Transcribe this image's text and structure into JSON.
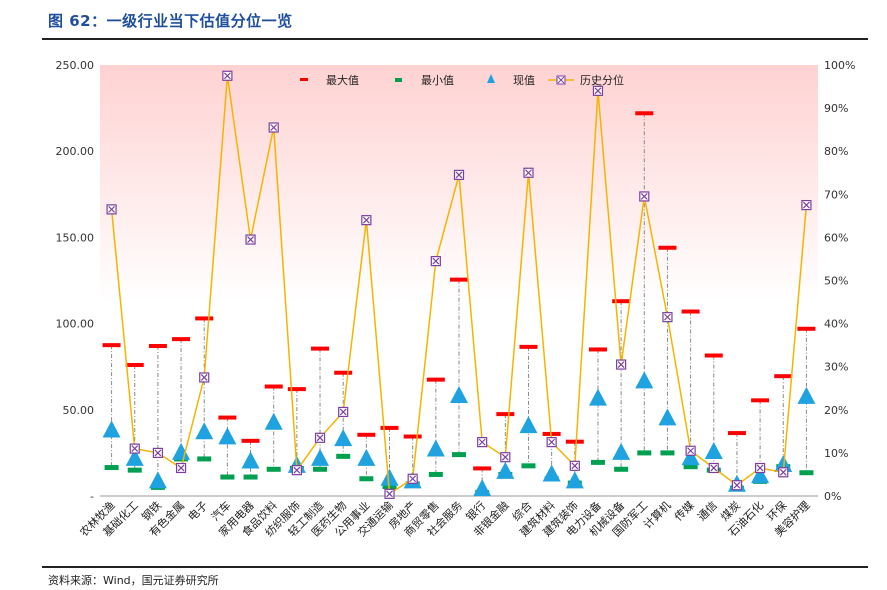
{
  "header": {
    "title": "图 62：一级行业当下估值分位一览"
  },
  "footer": {
    "source": "资料来源：Wind，国元证券研究所"
  },
  "colors": {
    "max": "#ff0000",
    "min": "#00a050",
    "current": "#1fa3e0",
    "percentile": "#f5b400",
    "marker": "#7b3fa0",
    "stem": "#888888",
    "band_top": "#ffd6d6"
  },
  "chart_data": {
    "type": "line",
    "title": "",
    "xlabel": "",
    "ylabel": "",
    "ylim": [
      0,
      250
    ],
    "y2lim": [
      0,
      100
    ],
    "y_ticks": [
      "-",
      "50.00",
      "100.00",
      "150.00",
      "200.00",
      "250.00"
    ],
    "y2_ticks": [
      "0%",
      "10%",
      "20%",
      "30%",
      "40%",
      "50%",
      "60%",
      "70%",
      "80%",
      "90%",
      "100%"
    ],
    "legend_position": "top-center",
    "legend": [
      "最大值",
      "最小值",
      "现值",
      "历史分位"
    ],
    "categories": [
      "农林牧渔",
      "基础化工",
      "钢铁",
      "有色金属",
      "电子",
      "汽车",
      "家用电器",
      "食品饮料",
      "纺织服饰",
      "轻工制造",
      "医药生物",
      "公用事业",
      "交通运输",
      "房地产",
      "商贸零售",
      "社会服务",
      "银行",
      "非银金融",
      "综合",
      "建筑材料",
      "建筑装饰",
      "电力设备",
      "机械设备",
      "国防军工",
      "计算机",
      "传媒",
      "通信",
      "煤炭",
      "石油石化",
      "环保",
      "美容护理"
    ],
    "series": [
      {
        "name": "最大值",
        "axis": "left",
        "values": [
          87.5,
          76,
          87,
          91,
          103,
          45.5,
          32,
          63.5,
          62,
          85.5,
          71.5,
          35.5,
          39.5,
          34.5,
          67.5,
          125.5,
          16,
          47.5,
          86.5,
          36,
          31.5,
          85,
          113,
          222,
          144,
          107,
          81.5,
          36.5,
          55.5,
          69.5,
          97
        ]
      },
      {
        "name": "最小值",
        "axis": "left",
        "values": [
          16.5,
          15,
          5,
          21.5,
          21.5,
          11,
          11,
          15.5,
          16,
          15.5,
          23,
          10,
          5.5,
          7,
          12.5,
          24,
          2,
          12.5,
          17.5,
          10,
          7.5,
          19.5,
          15.5,
          25,
          25,
          17,
          15,
          4.5,
          8.5,
          17,
          13.5
        ]
      },
      {
        "name": "现值",
        "axis": "left",
        "values": [
          38,
          21.5,
          8.5,
          25,
          37,
          34,
          20,
          42.5,
          17.5,
          21.5,
          33,
          21.5,
          10,
          8.5,
          27,
          58,
          4,
          14,
          40.5,
          12.5,
          8.5,
          56.5,
          25,
          66.5,
          45,
          22,
          25.5,
          6.5,
          11.5,
          18,
          57.5
        ]
      },
      {
        "name": "历史分位",
        "axis": "right",
        "values": [
          66.5,
          11,
          10,
          6.5,
          27.5,
          97.5,
          59.5,
          85.5,
          6,
          13.5,
          19.5,
          64,
          0.5,
          4,
          54.5,
          74.5,
          12.5,
          9,
          75,
          12.5,
          7,
          94,
          30.5,
          69.5,
          41.5,
          10.5,
          6.5,
          2.5,
          6.5,
          5.5,
          67.5
        ]
      }
    ]
  }
}
